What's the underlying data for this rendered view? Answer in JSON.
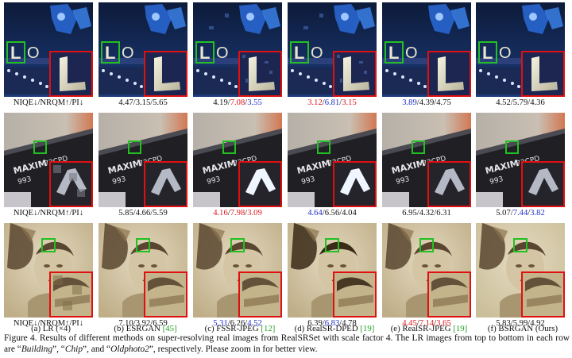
{
  "rows": [
    {
      "name": "Building",
      "metrics": [
        {
          "parts": [
            {
              "t": "NIQE↓/NRQM↑/PI↓",
              "c": ""
            }
          ]
        },
        {
          "parts": [
            {
              "t": "4.47/3.15/5.65",
              "c": ""
            }
          ]
        },
        {
          "parts": [
            {
              "t": "4.19/",
              "c": ""
            },
            {
              "t": "7.08",
              "c": "red"
            },
            {
              "t": "/",
              "c": ""
            },
            {
              "t": "3.55",
              "c": "blue"
            }
          ]
        },
        {
          "parts": [
            {
              "t": "3.12",
              "c": "red"
            },
            {
              "t": "/",
              "c": ""
            },
            {
              "t": "6.81",
              "c": "blue"
            },
            {
              "t": "/",
              "c": ""
            },
            {
              "t": "3.15",
              "c": "red"
            }
          ]
        },
        {
          "parts": [
            {
              "t": "3.89",
              "c": "blue"
            },
            {
              "t": "/4.39/4.75",
              "c": ""
            }
          ]
        },
        {
          "parts": [
            {
              "t": "4.52/5.79/4.36",
              "c": ""
            }
          ]
        }
      ]
    },
    {
      "name": "Chip",
      "metrics": [
        {
          "parts": [
            {
              "t": "NIQE↓/NRQM↑/PI↓",
              "c": ""
            }
          ]
        },
        {
          "parts": [
            {
              "t": "5.85/4.66/5.59",
              "c": ""
            }
          ]
        },
        {
          "parts": [
            {
              "t": "4.16",
              "c": "red"
            },
            {
              "t": "/",
              "c": ""
            },
            {
              "t": "7.98",
              "c": "red"
            },
            {
              "t": "/",
              "c": ""
            },
            {
              "t": "3.09",
              "c": "red"
            }
          ]
        },
        {
          "parts": [
            {
              "t": "4.64",
              "c": "blue"
            },
            {
              "t": "/6.56/4.04",
              "c": ""
            }
          ]
        },
        {
          "parts": [
            {
              "t": "6.95/4.32/6.31",
              "c": ""
            }
          ]
        },
        {
          "parts": [
            {
              "t": "5.07/",
              "c": ""
            },
            {
              "t": "7.44",
              "c": "blue"
            },
            {
              "t": "/",
              "c": ""
            },
            {
              "t": "3.82",
              "c": "blue"
            }
          ]
        }
      ]
    },
    {
      "name": "Oldphoto2",
      "metrics": [
        {
          "parts": [
            {
              "t": "NIQE↓/NRQM↑/PI↓",
              "c": ""
            }
          ]
        },
        {
          "parts": [
            {
              "t": "7.10/3.92/6.59",
              "c": ""
            }
          ]
        },
        {
          "parts": [
            {
              "t": "5.31",
              "c": "blue"
            },
            {
              "t": "/6.26/",
              "c": ""
            },
            {
              "t": "4.52",
              "c": "blue"
            }
          ]
        },
        {
          "parts": [
            {
              "t": "6.39/",
              "c": ""
            },
            {
              "t": "6.83",
              "c": "blue"
            },
            {
              "t": "/4.78",
              "c": ""
            }
          ]
        },
        {
          "parts": [
            {
              "t": "4.45",
              "c": "red"
            },
            {
              "t": "/",
              "c": ""
            },
            {
              "t": "7.14",
              "c": "red"
            },
            {
              "t": "/",
              "c": ""
            },
            {
              "t": "3.65",
              "c": "red"
            }
          ]
        },
        {
          "parts": [
            {
              "t": "5.83/5.99/4.92",
              "c": ""
            }
          ]
        }
      ]
    }
  ],
  "columns": [
    {
      "label": "(a) LR (×4)",
      "cite": ""
    },
    {
      "label": "(b) ESRGAN ",
      "cite": "[45]"
    },
    {
      "label": "(c) FSSR-JPEG ",
      "cite": "[12]"
    },
    {
      "label": "(d) RealSR-DPED ",
      "cite": "[19]"
    },
    {
      "label": "(e) RealSR-JPEG ",
      "cite": "[19]"
    },
    {
      "label": "(f) BSRGAN (Ours)",
      "cite": ""
    }
  ],
  "figure_caption": {
    "lead": "Figure 4. Results of different methods on super-resolving real images from RealSRSet with scale factor 4. The LR images from top to bottom in each row are “",
    "n1": "Building",
    "s1": "”, “",
    "n2": "Chip",
    "s2": "”, and “",
    "n3": "Oldphoto2",
    "tail": "”, respectively. Please zoom in for better view."
  },
  "colors": {
    "highlight_box": "#e01010",
    "lr_box": "#22c022",
    "best": "#e1141b",
    "second": "#2030c8",
    "cite": "#25a025"
  }
}
